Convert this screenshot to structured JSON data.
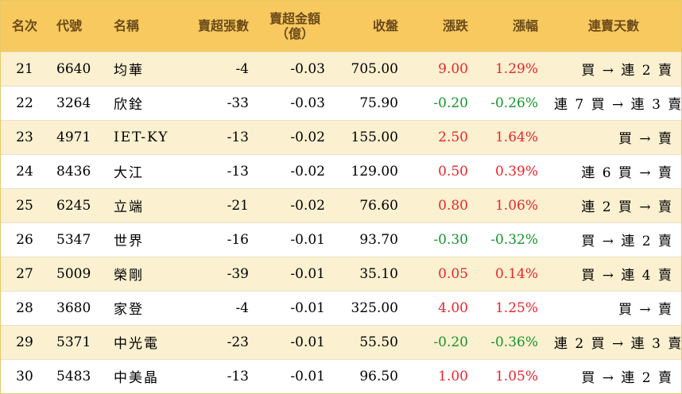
{
  "colors": {
    "header_bg": "#f7c95e",
    "header_text": "#6b4a1a",
    "odd_row": "#fbf0d0",
    "up": "#e8262d",
    "down": "#17952d"
  },
  "headers": {
    "rank": "名次",
    "code": "代號",
    "name": "名稱",
    "net_sell_lots": "賣超張數",
    "net_sell_amount_line1": "賣超金額",
    "net_sell_amount_line2": "（億）",
    "close": "收盤",
    "change": "漲跌",
    "change_pct": "漲幅",
    "streak": "連賣天數"
  },
  "rows": [
    {
      "rank": "21",
      "code": "6640",
      "name": "均華",
      "lots": "-4",
      "amount": "-0.03",
      "close": "705.00",
      "change": "9.00",
      "pct": "1.29%",
      "dir": "up",
      "streak": "買 → 連 2 賣"
    },
    {
      "rank": "22",
      "code": "3264",
      "name": "欣銓",
      "lots": "-33",
      "amount": "-0.03",
      "close": "75.90",
      "change": "-0.20",
      "pct": "-0.26%",
      "dir": "down",
      "streak": "連 7 買 → 連 3 賣"
    },
    {
      "rank": "23",
      "code": "4971",
      "name": "IET-KY",
      "lots": "-13",
      "amount": "-0.02",
      "close": "155.00",
      "change": "2.50",
      "pct": "1.64%",
      "dir": "up",
      "streak": "買 → 賣"
    },
    {
      "rank": "24",
      "code": "8436",
      "name": "大江",
      "lots": "-13",
      "amount": "-0.02",
      "close": "129.00",
      "change": "0.50",
      "pct": "0.39%",
      "dir": "up",
      "streak": "連 6 買 → 賣"
    },
    {
      "rank": "25",
      "code": "6245",
      "name": "立端",
      "lots": "-21",
      "amount": "-0.02",
      "close": "76.60",
      "change": "0.80",
      "pct": "1.06%",
      "dir": "up",
      "streak": "連 2 買 → 賣"
    },
    {
      "rank": "26",
      "code": "5347",
      "name": "世界",
      "lots": "-16",
      "amount": "-0.01",
      "close": "93.70",
      "change": "-0.30",
      "pct": "-0.32%",
      "dir": "down",
      "streak": "買 → 連 2 賣"
    },
    {
      "rank": "27",
      "code": "5009",
      "name": "榮剛",
      "lots": "-39",
      "amount": "-0.01",
      "close": "35.10",
      "change": "0.05",
      "pct": "0.14%",
      "dir": "up",
      "streak": "買 → 連 4 賣"
    },
    {
      "rank": "28",
      "code": "3680",
      "name": "家登",
      "lots": "-4",
      "amount": "-0.01",
      "close": "325.00",
      "change": "4.00",
      "pct": "1.25%",
      "dir": "up",
      "streak": "買 → 賣"
    },
    {
      "rank": "29",
      "code": "5371",
      "name": "中光電",
      "lots": "-23",
      "amount": "-0.01",
      "close": "55.50",
      "change": "-0.20",
      "pct": "-0.36%",
      "dir": "down",
      "streak": "連 2 買 → 連 3 賣"
    },
    {
      "rank": "30",
      "code": "5483",
      "name": "中美晶",
      "lots": "-13",
      "amount": "-0.01",
      "close": "96.50",
      "change": "1.00",
      "pct": "1.05%",
      "dir": "up",
      "streak": "買 → 連 2 賣"
    }
  ]
}
